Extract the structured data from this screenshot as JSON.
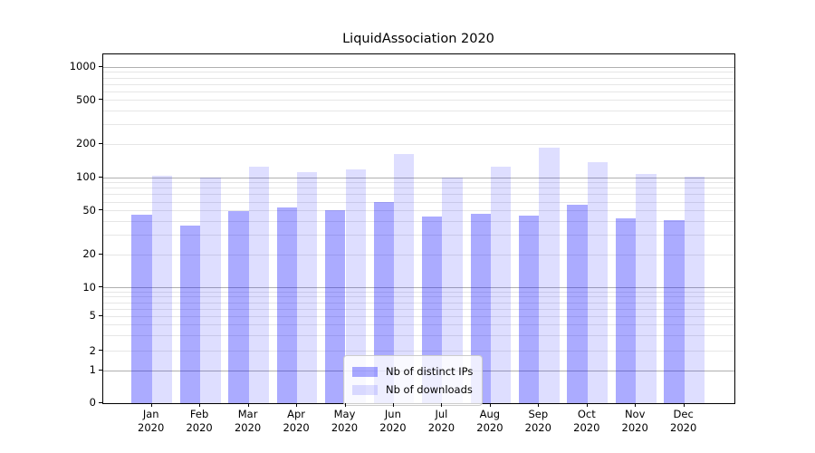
{
  "figure": {
    "title": "LiquidAssociation 2020"
  },
  "chart_data": {
    "type": "bar",
    "title": "LiquidAssociation 2020",
    "categories": [
      "Jan",
      "Feb",
      "Mar",
      "Apr",
      "May",
      "Jun",
      "Jul",
      "Aug",
      "Sep",
      "Oct",
      "Nov",
      "Dec"
    ],
    "x_year_line": "2020",
    "series": [
      {
        "name": "Nb of distinct IPs",
        "color": "rgba(0,0,255,0.33)",
        "values": [
          46,
          37,
          50,
          54,
          51,
          60,
          44,
          47,
          45,
          57,
          43,
          41
        ]
      },
      {
        "name": "Nb of downloads",
        "color": "rgba(0,0,255,0.13)",
        "values": [
          103,
          100,
          126,
          112,
          118,
          164,
          100,
          125,
          186,
          138,
          108,
          102
        ]
      }
    ],
    "ylabel": "",
    "xlabel": "",
    "y_scale": "symlog",
    "y_ticks": [
      0,
      1,
      2,
      5,
      10,
      20,
      50,
      100,
      200,
      500,
      1000
    ],
    "y_major_gridlines": [
      1,
      10,
      100,
      1000
    ],
    "y_minor_gridlines": [
      2,
      3,
      4,
      5,
      6,
      7,
      8,
      9,
      20,
      30,
      40,
      50,
      60,
      70,
      80,
      90,
      200,
      300,
      400,
      500,
      600,
      700,
      800,
      900
    ],
    "ylim": [
      0,
      1150
    ],
    "grid": true,
    "legend_position": "lower center",
    "colors": {
      "major_grid": "#b0b0b0",
      "minor_grid": "#e6e6e6",
      "spine": "#000000",
      "background": "#ffffff"
    }
  }
}
